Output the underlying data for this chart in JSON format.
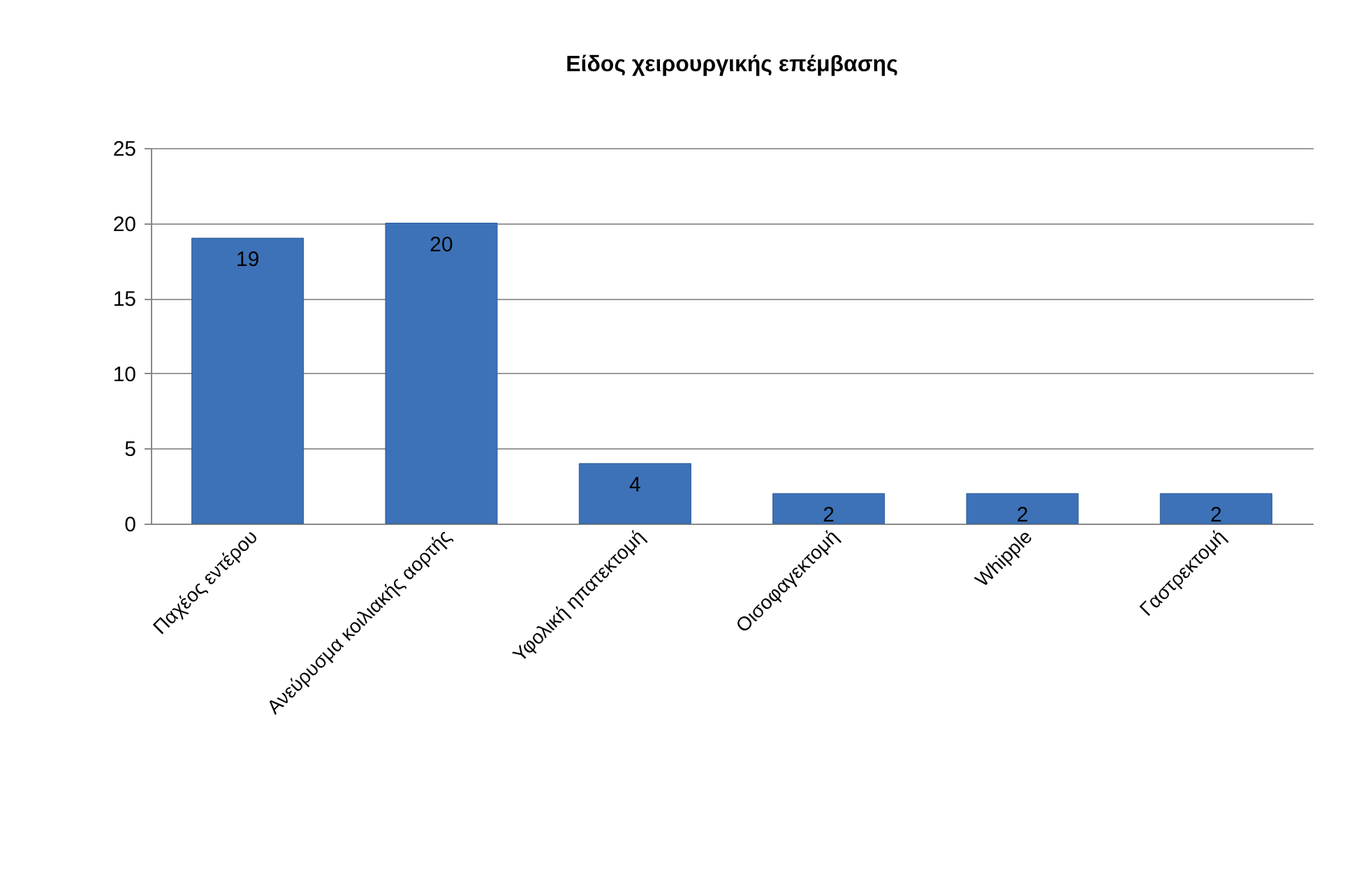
{
  "chart_data": {
    "type": "bar",
    "title": "Είδος χειρουργικής επέμβασης",
    "categories": [
      "Παχέος εντέρου",
      "Ανεύρυσμα κοιλιακής αορτής",
      "Υφολική ηπατεκτομή",
      "Οισοφαγεκτομή",
      "Whipple",
      "Γαστρεκτομή"
    ],
    "values": [
      19,
      20,
      4,
      2,
      2,
      2
    ],
    "color": "#3d72b8",
    "ylim": [
      0,
      25
    ],
    "yticks": [
      0,
      5,
      10,
      15,
      20,
      25
    ],
    "grid": "y",
    "data_labels": true
  }
}
